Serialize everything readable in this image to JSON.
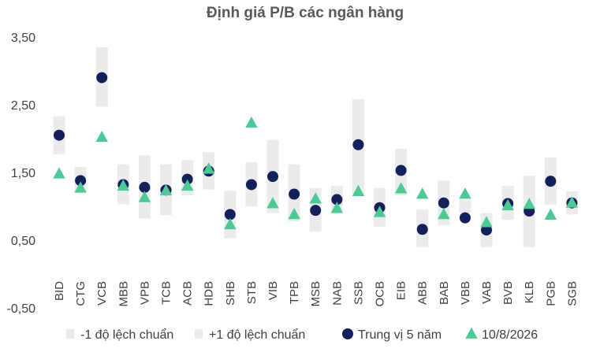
{
  "chart_data": {
    "type": "scatter",
    "title": "Định giá P/B các ngân hàng",
    "xlabel": "",
    "ylabel": "",
    "ylim": [
      -0.5,
      3.5
    ],
    "yticks": [
      "3,50",
      "2,50",
      "1,50",
      "0,50",
      "-0,50"
    ],
    "ytick_values": [
      3.5,
      2.5,
      1.5,
      0.5,
      -0.5
    ],
    "legend_position": "bottom",
    "grid": false,
    "categories": [
      "BID",
      "CTG",
      "VCB",
      "MBB",
      "VPB",
      "TCB",
      "ACB",
      "HDB",
      "SHB",
      "STB",
      "VIB",
      "TPB",
      "MSB",
      "NAB",
      "SSB",
      "OCB",
      "EIB",
      "ABB",
      "BAB",
      "VBB",
      "VAB",
      "BVB",
      "KLB",
      "PGB",
      "SGB"
    ],
    "series": [
      {
        "name": "-1 độ lệch chuẩn",
        "kind": "band-low",
        "values": [
          1.77,
          1.22,
          2.47,
          1.03,
          0.82,
          0.87,
          1.16,
          1.25,
          0.53,
          1.0,
          0.9,
          0.78,
          0.63,
          0.92,
          1.18,
          0.7,
          1.16,
          0.4,
          0.72,
          0.9,
          0.4,
          0.8,
          0.4,
          1.02,
          0.88
        ]
      },
      {
        "name": "+1 độ lệch chuẩn",
        "kind": "band-high",
        "values": [
          2.33,
          1.58,
          3.35,
          1.62,
          1.75,
          1.62,
          1.68,
          1.8,
          1.23,
          1.65,
          1.98,
          1.62,
          1.27,
          1.3,
          2.58,
          1.27,
          1.85,
          0.95,
          1.38,
          1.1,
          0.9,
          1.3,
          1.45,
          1.72,
          1.22
        ]
      },
      {
        "name": "Trung vị 5 năm",
        "kind": "circle",
        "color": "#13205a",
        "values": [
          2.05,
          1.38,
          2.9,
          1.32,
          1.28,
          1.24,
          1.4,
          1.52,
          0.88,
          1.32,
          1.44,
          1.18,
          0.94,
          1.1,
          1.91,
          0.98,
          1.53,
          0.66,
          1.05,
          0.83,
          0.65,
          1.04,
          0.93,
          1.37,
          1.05
        ]
      },
      {
        "name": "10/8/2026",
        "kind": "triangle",
        "color": "#4dc996",
        "values": [
          1.48,
          1.27,
          2.02,
          1.3,
          1.13,
          1.23,
          1.3,
          1.55,
          0.73,
          2.23,
          1.04,
          0.88,
          1.11,
          0.97,
          1.22,
          0.91,
          1.26,
          1.18,
          0.88,
          1.18,
          0.76,
          1.01,
          1.03,
          0.87,
          1.05
        ]
      }
    ],
    "colors": {
      "band": "#ebebeb",
      "median": "#13205a",
      "current": "#4dc996"
    }
  }
}
